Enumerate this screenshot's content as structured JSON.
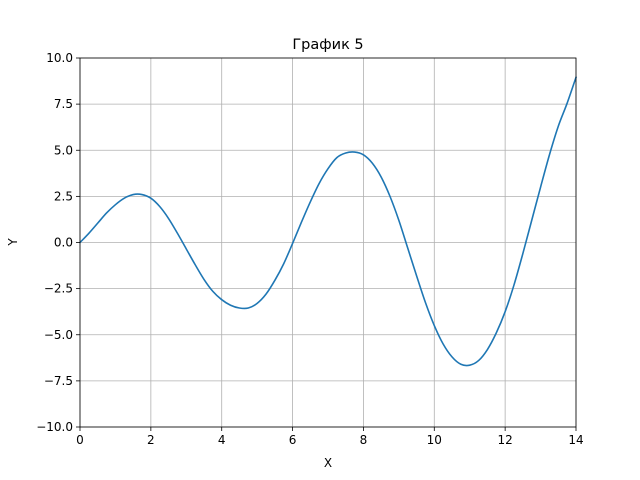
{
  "chart_data": {
    "type": "line",
    "title": "График 5",
    "xlabel": "X",
    "ylabel": "Y",
    "xlim": [
      0,
      14
    ],
    "ylim": [
      -10,
      10
    ],
    "xticks": [
      0,
      2,
      4,
      6,
      8,
      10,
      12,
      14
    ],
    "xtick_labels": [
      "0",
      "2",
      "4",
      "6",
      "8",
      "10",
      "12",
      "14"
    ],
    "yticks": [
      -10,
      -7.5,
      -5,
      -2.5,
      0,
      2.5,
      5,
      7.5,
      10
    ],
    "ytick_labels": [
      "−10.0",
      "−7.5",
      "−5.0",
      "−2.5",
      "0.0",
      "2.5",
      "5.0",
      "7.5",
      "10.0"
    ],
    "grid": true,
    "series": [
      {
        "color": "#1f77b4",
        "x": [
          0,
          0.25,
          0.5,
          0.75,
          1,
          1.25,
          1.5,
          1.75,
          2,
          2.25,
          2.5,
          2.75,
          3,
          3.25,
          3.5,
          3.75,
          4,
          4.25,
          4.5,
          4.75,
          5,
          5.25,
          5.5,
          5.75,
          6,
          6.25,
          6.5,
          6.75,
          7,
          7.25,
          7.5,
          7.75,
          8,
          8.25,
          8.5,
          8.75,
          9,
          9.25,
          9.5,
          9.75,
          10,
          10.25,
          10.5,
          10.75,
          11,
          11.25,
          11.5,
          11.75,
          12,
          12.25,
          12.5,
          12.75,
          13,
          13.25,
          13.5,
          13.75,
          14
        ],
        "y": [
          0,
          0.5,
          1.05,
          1.6,
          2.05,
          2.4,
          2.6,
          2.6,
          2.4,
          1.95,
          1.3,
          0.5,
          -0.35,
          -1.2,
          -2.0,
          -2.65,
          -3.1,
          -3.4,
          -3.55,
          -3.55,
          -3.3,
          -2.8,
          -2.05,
          -1.15,
          -0.05,
          1.1,
          2.2,
          3.2,
          4.0,
          4.6,
          4.85,
          4.9,
          4.75,
          4.3,
          3.55,
          2.5,
          1.2,
          -0.3,
          -1.8,
          -3.25,
          -4.5,
          -5.5,
          -6.2,
          -6.6,
          -6.65,
          -6.4,
          -5.8,
          -4.9,
          -3.75,
          -2.3,
          -0.6,
          1.2,
          3.0,
          4.75,
          6.3,
          7.55,
          8.95
        ]
      }
    ]
  }
}
